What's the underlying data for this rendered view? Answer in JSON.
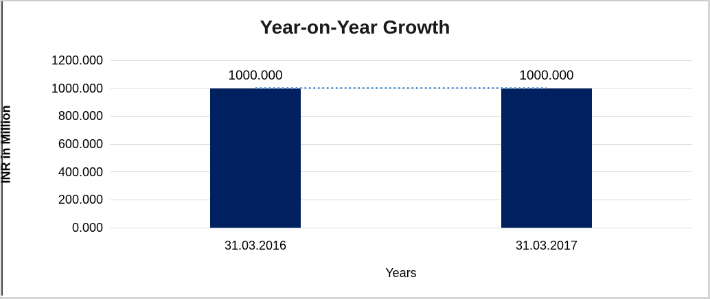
{
  "chart_data": {
    "type": "bar",
    "title": "Year-on-Year Growth",
    "xlabel": "Years",
    "ylabel": "INR in Million",
    "categories": [
      "31.03.2016",
      "31.03.2017"
    ],
    "values": [
      1000,
      1000
    ],
    "data_labels": [
      "1000.000",
      "1000.000"
    ],
    "ylim": [
      0,
      1200
    ],
    "ytick_values": [
      0,
      200,
      400,
      600,
      800,
      1000,
      1200
    ],
    "ytick_labels": [
      "0.000",
      "200.000",
      "400.000",
      "600.000",
      "800.000",
      "1000.000",
      "1200.000"
    ],
    "grid": true,
    "legend": "none",
    "connector_line": {
      "style": "dotted",
      "from_category": "31.03.2016",
      "to_category": "31.03.2017",
      "value": 1000
    },
    "colors": {
      "bar": "#002060",
      "connector": "#5B9BD5",
      "gridline": "#D9D9D9",
      "title_text": "#1a1a1a",
      "axis_text": "#000000"
    }
  }
}
